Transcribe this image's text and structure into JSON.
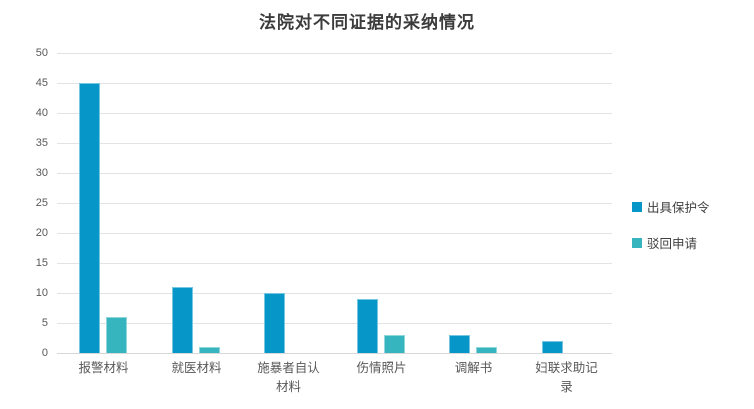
{
  "chart_data": {
    "type": "bar",
    "title": "法院对不同证据的采纳情况",
    "categories": [
      "报警材料",
      "就医材料",
      "施暴者自认\n材料",
      "伤情照片",
      "调解书",
      "妇联求助记\n录"
    ],
    "series": [
      {
        "name": "出具保护令",
        "color": "#0696c8",
        "values": [
          45,
          11,
          10,
          9,
          3,
          2
        ]
      },
      {
        "name": "驳回申请",
        "color": "#36b5bf",
        "values": [
          6,
          1,
          0,
          3,
          1,
          0
        ]
      }
    ],
    "ylim": [
      0,
      50
    ],
    "ytick_step": 5,
    "grid": true,
    "legend_position": "right",
    "xlabel": "",
    "ylabel": ""
  }
}
